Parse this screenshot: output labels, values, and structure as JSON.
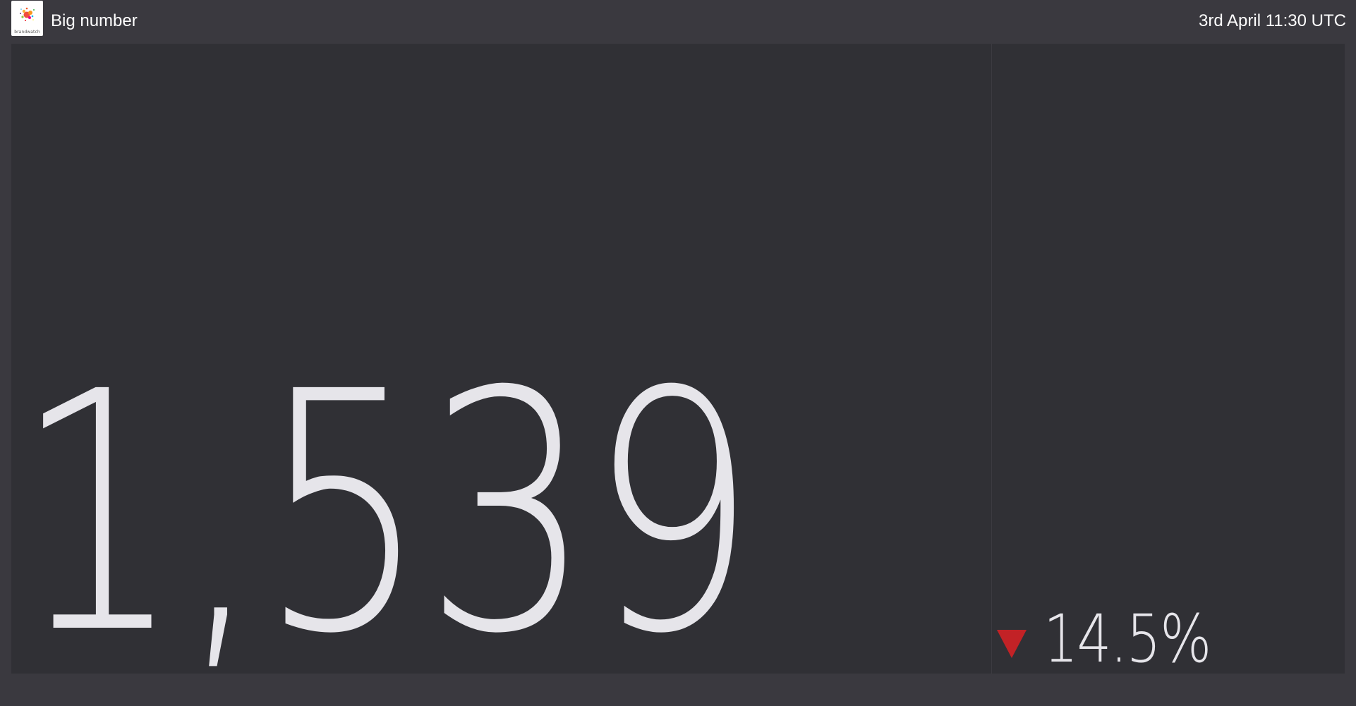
{
  "header": {
    "logo_text": "brandwatch",
    "title": "Big number",
    "timestamp": "3rd April 11:30 UTC"
  },
  "metric": {
    "value": "1,539",
    "change": {
      "direction": "down",
      "value": "14.5%",
      "icon": "triangle-down-icon",
      "color": "#c22226"
    }
  },
  "colors": {
    "background": "#3a393f",
    "panel": "#303035",
    "text": "#e6e5ea",
    "negative": "#c22226"
  }
}
